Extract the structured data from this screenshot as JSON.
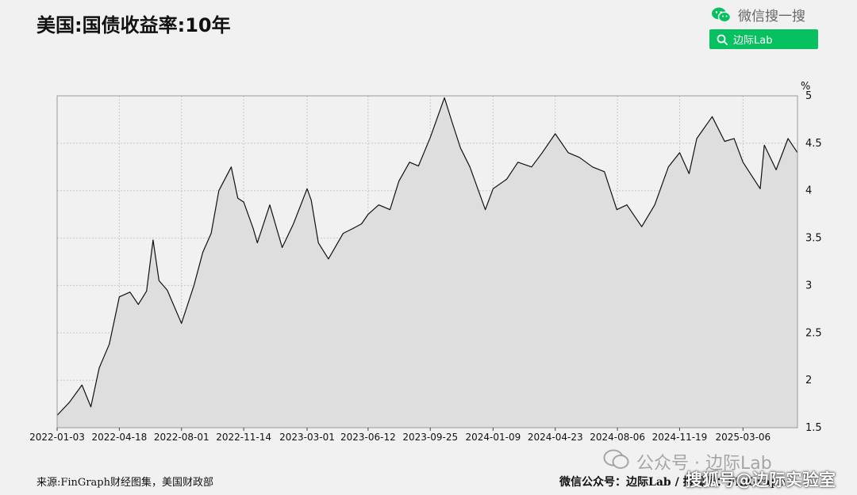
{
  "header": {
    "title": "美国:国债收益率:10年"
  },
  "brand": {
    "label": "微信搜一搜",
    "icon": "wechat-logo-icon",
    "color": "#07c160"
  },
  "search": {
    "query": "边际Lab",
    "icon": "search-icon"
  },
  "footer": {
    "source": "来源:FinGraph财经图集，美国财政部",
    "credit": "微信公众号：边际Lab / 搜狐号：FinGraph"
  },
  "watermarks": {
    "gongzhonghao": "公众号 · 边际Lab",
    "sohu": "搜狐号@边际实验室"
  },
  "chart_data": {
    "type": "area",
    "yunit": "%",
    "ylim": [
      1.5,
      5
    ],
    "yticks": [
      "5",
      "4.5",
      "4",
      "3.5",
      "3",
      "2.5",
      "2",
      "1.5"
    ],
    "yvalues": [
      5,
      4.5,
      4,
      3.5,
      3,
      2.5,
      2,
      1.5
    ],
    "xlim": [
      "2022-01-03",
      "2025-06-06"
    ],
    "xticks": [
      "2022-01-03",
      "2022-04-18",
      "2022-08-01",
      "2022-11-14",
      "2023-03-01",
      "2023-06-12",
      "2023-09-25",
      "2024-01-09",
      "2024-04-23",
      "2024-08-06",
      "2024-11-19",
      "2025-03-06"
    ],
    "grid": true,
    "line_color": "#111111",
    "fill_color": "#dedede",
    "series": [
      {
        "x": [
          "2022-01-03",
          "2022-01-24",
          "2022-02-14",
          "2022-03-01",
          "2022-03-15",
          "2022-04-01",
          "2022-04-18",
          "2022-05-06",
          "2022-05-20",
          "2022-06-03",
          "2022-06-14",
          "2022-06-24",
          "2022-07-08",
          "2022-08-01",
          "2022-08-22",
          "2022-09-06",
          "2022-09-20",
          "2022-10-03",
          "2022-10-24",
          "2022-11-04",
          "2022-11-14",
          "2022-11-30",
          "2022-12-07",
          "2022-12-28",
          "2023-01-18",
          "2023-02-06",
          "2023-03-01",
          "2023-03-08",
          "2023-03-20",
          "2023-04-06",
          "2023-05-01",
          "2023-05-17",
          "2023-06-01",
          "2023-06-12",
          "2023-06-30",
          "2023-07-19",
          "2023-08-03",
          "2023-08-21",
          "2023-09-05",
          "2023-09-25",
          "2023-10-19",
          "2023-11-01",
          "2023-11-15",
          "2023-12-01",
          "2023-12-27",
          "2024-01-09",
          "2024-02-01",
          "2024-02-20",
          "2024-03-14",
          "2024-04-01",
          "2024-04-23",
          "2024-05-15",
          "2024-06-03",
          "2024-06-25",
          "2024-07-15",
          "2024-08-05",
          "2024-08-22",
          "2024-09-16",
          "2024-10-08",
          "2024-10-31",
          "2024-11-19",
          "2024-12-05",
          "2024-12-18",
          "2025-01-13",
          "2025-02-03",
          "2025-02-19",
          "2025-03-06",
          "2025-04-04",
          "2025-04-11",
          "2025-05-01",
          "2025-05-21",
          "2025-06-06"
        ],
        "values": [
          1.63,
          1.77,
          1.95,
          1.72,
          2.13,
          2.38,
          2.88,
          2.93,
          2.8,
          2.94,
          3.48,
          3.05,
          2.95,
          2.6,
          3.0,
          3.35,
          3.55,
          4.0,
          4.25,
          3.92,
          3.88,
          3.6,
          3.45,
          3.85,
          3.4,
          3.65,
          4.02,
          3.9,
          3.45,
          3.28,
          3.55,
          3.6,
          3.65,
          3.75,
          3.85,
          3.8,
          4.1,
          4.3,
          4.26,
          4.56,
          4.98,
          4.72,
          4.45,
          4.25,
          3.8,
          4.02,
          4.12,
          4.3,
          4.25,
          4.4,
          4.6,
          4.4,
          4.35,
          4.25,
          4.2,
          3.8,
          3.85,
          3.62,
          3.85,
          4.25,
          4.4,
          4.18,
          4.55,
          4.78,
          4.52,
          4.55,
          4.3,
          4.02,
          4.48,
          4.22,
          4.55,
          4.4
        ]
      }
    ]
  }
}
